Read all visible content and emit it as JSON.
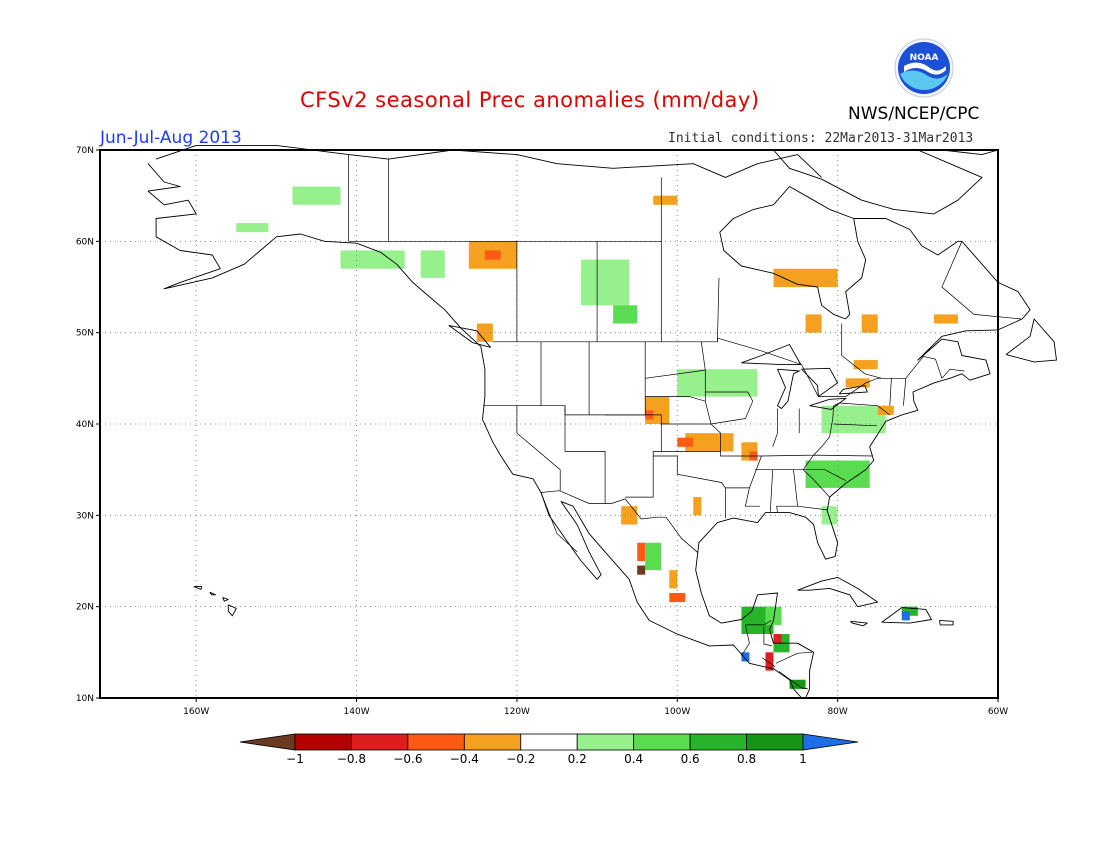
{
  "header": {
    "title": "CFSv2 seasonal Prec anomalies (mm/day)",
    "agency": "NWS/NCEP/CPC",
    "period": "Jun-Jul-Aug 2013",
    "initial_conditions": "Initial conditions: 22Mar2013-31Mar2013",
    "logo_text": "NOAA"
  },
  "map": {
    "lon_range": [
      -172,
      -60
    ],
    "lat_range": [
      10,
      70
    ],
    "lon_ticks": [
      {
        "value": -160,
        "label": "160W"
      },
      {
        "value": -140,
        "label": "140W"
      },
      {
        "value": -120,
        "label": "120W"
      },
      {
        "value": -100,
        "label": "100W"
      },
      {
        "value": -80,
        "label": "80W"
      },
      {
        "value": -60,
        "label": "60W"
      }
    ],
    "lat_ticks": [
      {
        "value": 10,
        "label": "10N"
      },
      {
        "value": 20,
        "label": "20N"
      },
      {
        "value": 30,
        "label": "30N"
      },
      {
        "value": 40,
        "label": "40N"
      },
      {
        "value": 50,
        "label": "50N"
      },
      {
        "value": 60,
        "label": "60N"
      },
      {
        "value": 70,
        "label": "70N"
      }
    ],
    "gridlines": true,
    "anomaly_cells": [
      {
        "lon": -142,
        "lat": 57,
        "w": 8,
        "h": 2,
        "value": 0.3
      },
      {
        "lon": -148,
        "lat": 64,
        "w": 6,
        "h": 2,
        "value": 0.3
      },
      {
        "lon": -155,
        "lat": 61,
        "w": 4,
        "h": 1,
        "value": 0.3
      },
      {
        "lon": -132,
        "lat": 56,
        "w": 3,
        "h": 3,
        "value": 0.3
      },
      {
        "lon": -112,
        "lat": 53,
        "w": 6,
        "h": 5,
        "value": 0.3
      },
      {
        "lon": -108,
        "lat": 51,
        "w": 3,
        "h": 2,
        "value": 0.5
      },
      {
        "lon": -100,
        "lat": 43,
        "w": 10,
        "h": 3,
        "value": 0.3
      },
      {
        "lon": -82,
        "lat": 39,
        "w": 8,
        "h": 3,
        "value": 0.3
      },
      {
        "lon": -84,
        "lat": 33,
        "w": 8,
        "h": 3,
        "value": 0.4
      },
      {
        "lon": -82,
        "lat": 29,
        "w": 2,
        "h": 2,
        "value": 0.3
      },
      {
        "lon": -104,
        "lat": 24,
        "w": 2,
        "h": 3,
        "value": 0.4
      },
      {
        "lon": -92,
        "lat": 17,
        "w": 4,
        "h": 3,
        "value": 0.6
      },
      {
        "lon": -88,
        "lat": 15,
        "w": 2,
        "h": 2,
        "value": 0.7
      },
      {
        "lon": -89,
        "lat": 18,
        "w": 2,
        "h": 2,
        "value": 0.4
      },
      {
        "lon": -72,
        "lat": 19,
        "w": 2,
        "h": 1,
        "value": 0.6
      },
      {
        "lon": -72,
        "lat": 18.5,
        "w": 1,
        "h": 1,
        "value": 1.1
      },
      {
        "lon": -92,
        "lat": 14,
        "w": 1,
        "h": 1,
        "value": 1.1
      },
      {
        "lon": -86,
        "lat": 11,
        "w": 2,
        "h": 1,
        "value": 0.9
      },
      {
        "lon": -126,
        "lat": 57,
        "w": 6,
        "h": 3,
        "value": -0.3
      },
      {
        "lon": -124,
        "lat": 58,
        "w": 2,
        "h": 1,
        "value": -0.6
      },
      {
        "lon": -125,
        "lat": 49,
        "w": 2,
        "h": 2,
        "value": -0.3
      },
      {
        "lon": -88,
        "lat": 55,
        "w": 8,
        "h": 2,
        "value": -0.3
      },
      {
        "lon": -84,
        "lat": 50,
        "w": 2,
        "h": 2,
        "value": -0.3
      },
      {
        "lon": -77,
        "lat": 50,
        "w": 2,
        "h": 2,
        "value": -0.3
      },
      {
        "lon": -68,
        "lat": 51,
        "w": 3,
        "h": 1,
        "value": -0.3
      },
      {
        "lon": -104,
        "lat": 40,
        "w": 3,
        "h": 3,
        "value": -0.3
      },
      {
        "lon": -104,
        "lat": 40.5,
        "w": 1,
        "h": 1,
        "value": -0.6
      },
      {
        "lon": -99,
        "lat": 37,
        "w": 6,
        "h": 2,
        "value": -0.3
      },
      {
        "lon": -100,
        "lat": 37.5,
        "w": 2,
        "h": 1,
        "value": -0.6
      },
      {
        "lon": -92,
        "lat": 36,
        "w": 2,
        "h": 2,
        "value": -0.3
      },
      {
        "lon": -91,
        "lat": 36,
        "w": 1,
        "h": 1,
        "value": -0.5
      },
      {
        "lon": -75,
        "lat": 41,
        "w": 2,
        "h": 1,
        "value": -0.3
      },
      {
        "lon": -79,
        "lat": 44,
        "w": 3,
        "h": 1,
        "value": -0.3
      },
      {
        "lon": -107,
        "lat": 29,
        "w": 2,
        "h": 2,
        "value": -0.3
      },
      {
        "lon": -105,
        "lat": 25,
        "w": 1,
        "h": 2,
        "value": -0.6
      },
      {
        "lon": -105,
        "lat": 23.5,
        "w": 1,
        "h": 1,
        "value": -1.1
      },
      {
        "lon": -101,
        "lat": 20.5,
        "w": 2,
        "h": 1,
        "value": -0.6
      },
      {
        "lon": -101,
        "lat": 22,
        "w": 1,
        "h": 2,
        "value": -0.3
      },
      {
        "lon": -98,
        "lat": 30,
        "w": 1,
        "h": 2,
        "value": -0.3
      },
      {
        "lon": -89,
        "lat": 13,
        "w": 1,
        "h": 2,
        "value": -0.7
      },
      {
        "lon": -88,
        "lat": 16,
        "w": 1,
        "h": 1,
        "value": -0.7
      },
      {
        "lon": -103,
        "lat": 64,
        "w": 3,
        "h": 1,
        "value": -0.3
      },
      {
        "lon": -78,
        "lat": 46,
        "w": 3,
        "h": 1,
        "value": -0.3
      }
    ]
  },
  "colorbar": {
    "levels": [
      -1,
      -0.8,
      -0.6,
      -0.4,
      -0.2,
      0.2,
      0.4,
      0.6,
      0.8,
      1
    ],
    "labels": [
      "−1",
      "−0.8",
      "−0.6",
      "−0.4",
      "−0.2",
      "0.2",
      "0.4",
      "0.6",
      "0.8",
      "1"
    ],
    "colors": [
      "#6b3a20",
      "#b40000",
      "#dc1e1e",
      "#ff5a14",
      "#f5a01e",
      "#ffffff",
      "#96f08c",
      "#5adc50",
      "#28b428",
      "#149614",
      "#1e6ee6"
    ]
  }
}
